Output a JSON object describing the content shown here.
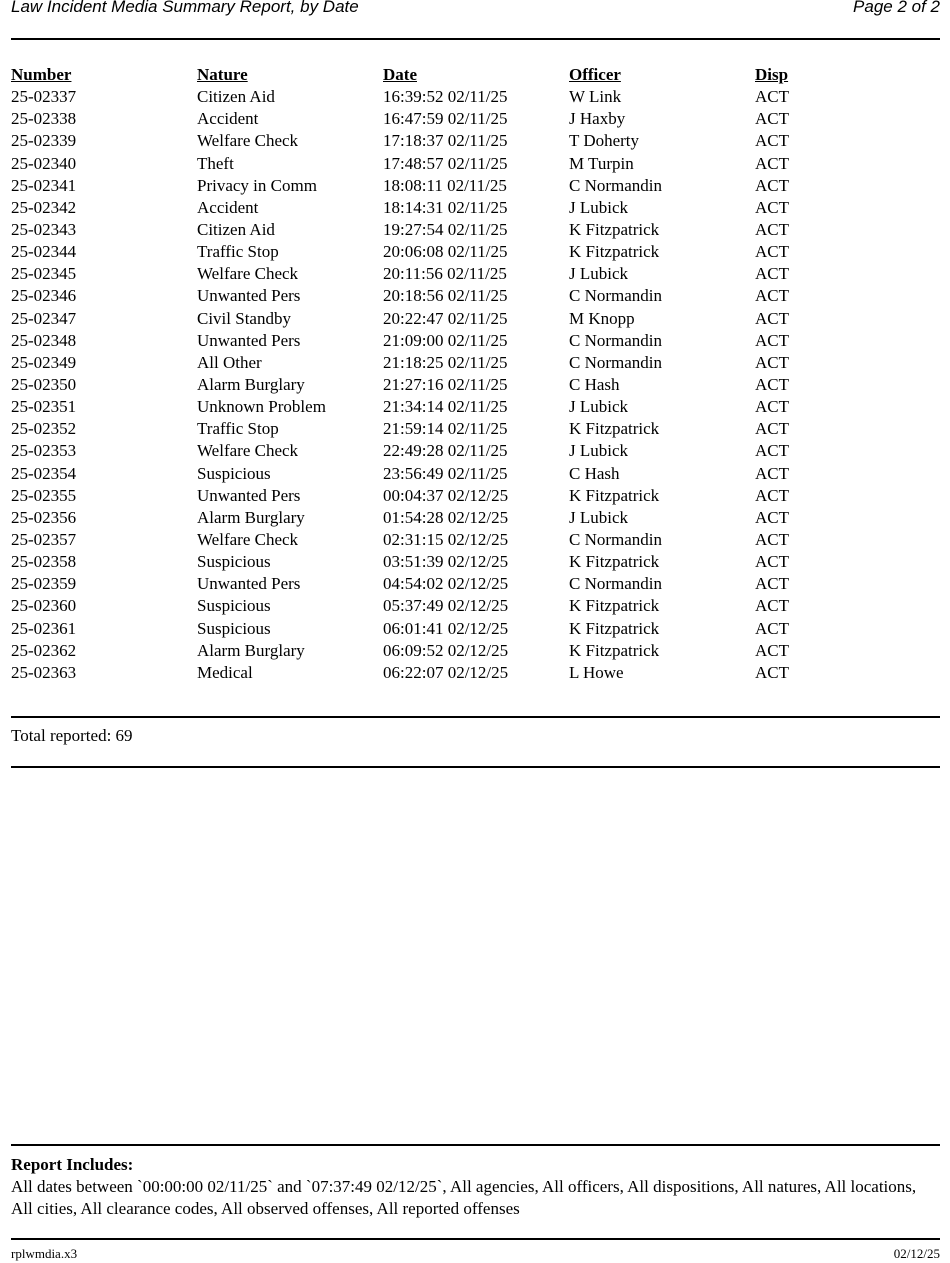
{
  "header": {
    "title": "Law Incident Media Summary Report, by Date",
    "page": "Page 2 of 2"
  },
  "columns": [
    "Number",
    "Nature",
    "Date",
    "Officer",
    "Disp"
  ],
  "rows": [
    [
      "25-02337",
      "Citizen Aid",
      "16:39:52 02/11/25",
      "W Link",
      "ACT"
    ],
    [
      "25-02338",
      "Accident",
      "16:47:59 02/11/25",
      "J Haxby",
      "ACT"
    ],
    [
      "25-02339",
      "Welfare Check",
      "17:18:37 02/11/25",
      "T Doherty",
      "ACT"
    ],
    [
      "25-02340",
      "Theft",
      "17:48:57 02/11/25",
      "M Turpin",
      "ACT"
    ],
    [
      "25-02341",
      "Privacy in Comm",
      "18:08:11 02/11/25",
      "C Normandin",
      "ACT"
    ],
    [
      "25-02342",
      "Accident",
      "18:14:31 02/11/25",
      "J Lubick",
      "ACT"
    ],
    [
      "25-02343",
      "Citizen Aid",
      "19:27:54 02/11/25",
      "K Fitzpatrick",
      "ACT"
    ],
    [
      "25-02344",
      "Traffic Stop",
      "20:06:08 02/11/25",
      "K Fitzpatrick",
      "ACT"
    ],
    [
      "25-02345",
      "Welfare Check",
      "20:11:56 02/11/25",
      "J Lubick",
      "ACT"
    ],
    [
      "25-02346",
      "Unwanted Pers",
      "20:18:56 02/11/25",
      "C Normandin",
      "ACT"
    ],
    [
      "25-02347",
      "Civil Standby",
      "20:22:47 02/11/25",
      "M Knopp",
      "ACT"
    ],
    [
      "25-02348",
      "Unwanted Pers",
      "21:09:00 02/11/25",
      "C Normandin",
      "ACT"
    ],
    [
      "25-02349",
      "All Other",
      "21:18:25 02/11/25",
      "C Normandin",
      "ACT"
    ],
    [
      "25-02350",
      "Alarm Burglary",
      "21:27:16 02/11/25",
      "C Hash",
      "ACT"
    ],
    [
      "25-02351",
      "Unknown Problem",
      "21:34:14 02/11/25",
      "J Lubick",
      "ACT"
    ],
    [
      "25-02352",
      "Traffic Stop",
      "21:59:14 02/11/25",
      "K Fitzpatrick",
      "ACT"
    ],
    [
      "25-02353",
      "Welfare Check",
      "22:49:28 02/11/25",
      "J Lubick",
      "ACT"
    ],
    [
      "25-02354",
      "Suspicious",
      "23:56:49 02/11/25",
      "C Hash",
      "ACT"
    ],
    [
      "25-02355",
      "Unwanted Pers",
      "00:04:37 02/12/25",
      "K Fitzpatrick",
      "ACT"
    ],
    [
      "25-02356",
      "Alarm Burglary",
      "01:54:28 02/12/25",
      "J Lubick",
      "ACT"
    ],
    [
      "25-02357",
      "Welfare Check",
      "02:31:15 02/12/25",
      "C Normandin",
      "ACT"
    ],
    [
      "25-02358",
      "Suspicious",
      "03:51:39 02/12/25",
      "K Fitzpatrick",
      "ACT"
    ],
    [
      "25-02359",
      "Unwanted Pers",
      "04:54:02 02/12/25",
      "C Normandin",
      "ACT"
    ],
    [
      "25-02360",
      "Suspicious",
      "05:37:49 02/12/25",
      "K Fitzpatrick",
      "ACT"
    ],
    [
      "25-02361",
      "Suspicious",
      "06:01:41 02/12/25",
      "K Fitzpatrick",
      "ACT"
    ],
    [
      "25-02362",
      "Alarm Burglary",
      "06:09:52 02/12/25",
      "K Fitzpatrick",
      "ACT"
    ],
    [
      "25-02363",
      "Medical",
      "06:22:07 02/12/25",
      "L Howe",
      "ACT"
    ]
  ],
  "total": "Total reported: 69",
  "includes": {
    "heading": "Report Includes:",
    "text": "All dates between `00:00:00 02/11/25` and `07:37:49 02/12/25`, All agencies, All officers, All dispositions, All natures, All locations, All cities, All clearance codes, All observed offenses, All reported offenses"
  },
  "footer": {
    "report_id": "rplwmdia.x3",
    "date": "02/12/25"
  }
}
